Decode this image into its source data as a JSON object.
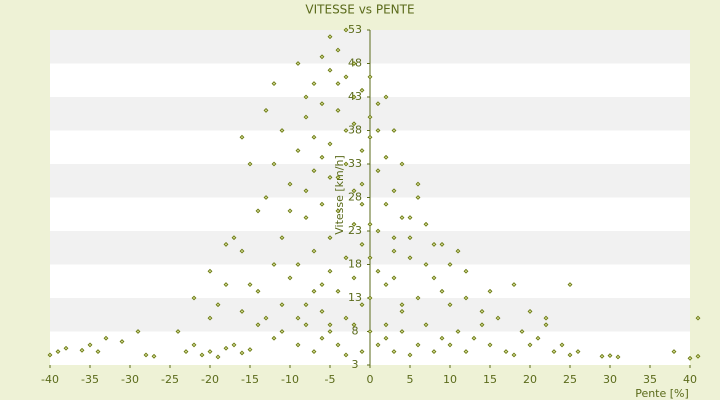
{
  "chart_data": {
    "type": "scatter",
    "title": "VITESSE vs PENTE",
    "x_label": "Pente [%]",
    "y_label": "Vitesse [km/h]",
    "color": "#6b7a12",
    "grid": true,
    "xlim": [
      -40,
      40
    ],
    "ylim": [
      3,
      53
    ],
    "xticks": [
      -40,
      -35,
      -30,
      -25,
      -20,
      -15,
      -10,
      -5,
      0,
      5,
      10,
      15,
      20,
      25,
      30,
      35,
      40
    ],
    "yticks": [
      3,
      8,
      13,
      18,
      23,
      28,
      33,
      38,
      43,
      48,
      53
    ],
    "x": [
      -39,
      -40,
      -38,
      -36,
      -35,
      -33,
      -34,
      -31,
      -29,
      -28,
      -27,
      -24,
      -23,
      -22,
      -21,
      -20,
      -19,
      -18,
      -17,
      -16,
      -15,
      -14,
      -13,
      -12,
      -11,
      -9,
      -8,
      -7,
      -6,
      -5,
      -4,
      -3,
      -2,
      -1,
      1,
      2,
      3,
      4,
      5,
      6,
      7,
      8,
      9,
      10,
      11,
      12,
      13,
      14,
      15,
      16,
      17,
      18,
      19,
      20,
      21,
      22,
      23,
      24,
      25,
      26,
      29,
      30,
      31,
      38,
      40,
      41,
      41,
      -22,
      -20,
      -18,
      -16,
      20,
      22,
      25,
      18,
      15,
      12,
      10,
      -8,
      -6,
      -4,
      -2,
      0,
      2,
      4,
      -9,
      -7,
      -5,
      -3,
      -1,
      1,
      3,
      5,
      7,
      9,
      -8,
      -6,
      -4,
      -2,
      0,
      2,
      4,
      6,
      -10,
      -7,
      -5,
      -3,
      -1,
      1,
      3,
      -9,
      -7,
      -5,
      -3,
      -1,
      0,
      2,
      -8,
      -6,
      -4,
      -2,
      0,
      1,
      -7,
      -5,
      -3,
      -1,
      0,
      -6,
      -4,
      -2,
      -5,
      -8,
      -12,
      -13,
      -11,
      -16,
      -15,
      -13,
      -16,
      -14,
      -11,
      -10,
      -12,
      -9,
      -6,
      -3,
      2,
      4,
      6,
      8,
      10,
      11,
      7,
      6,
      8,
      4,
      3,
      2,
      -3,
      -9,
      -4,
      -2,
      0,
      1,
      3,
      5,
      -7,
      -11,
      -14,
      -5,
      -1,
      1,
      -6,
      -8,
      -10,
      -12,
      -4,
      -2,
      3,
      5,
      -1,
      0,
      -5,
      9,
      12,
      14,
      -15,
      -18,
      -17,
      -19,
      -20
    ],
    "values": [
      5,
      4.5,
      5.5,
      5.2,
      6,
      7,
      5,
      6.5,
      8,
      4.5,
      4.3,
      8,
      5,
      6,
      4.5,
      5,
      4.2,
      5.5,
      6,
      4.8,
      5.3,
      9,
      10,
      7,
      8,
      6,
      9,
      5,
      7,
      8,
      6,
      4.5,
      9,
      5,
      6,
      7,
      5,
      8,
      4.5,
      6,
      9,
      5,
      7,
      6,
      8,
      5,
      7,
      9,
      6,
      10,
      5,
      4.5,
      8,
      6,
      7,
      9,
      5,
      6,
      4.5,
      5,
      4.3,
      4.4,
      4.2,
      5,
      4,
      4.3,
      10,
      13,
      10,
      15,
      11,
      11,
      10,
      15,
      15,
      14,
      13,
      12,
      12,
      15,
      14,
      16,
      13,
      15,
      12,
      18,
      20,
      22,
      19,
      21,
      23,
      20,
      22,
      18,
      21,
      25,
      27,
      26,
      29,
      24,
      27,
      25,
      28,
      30,
      32,
      31,
      33,
      30,
      32,
      29,
      35,
      37,
      36,
      38,
      35,
      37,
      34,
      40,
      42,
      41,
      43,
      40,
      42,
      45,
      47,
      46,
      44,
      46,
      49,
      50,
      48,
      52,
      43,
      45,
      41,
      38,
      37,
      33,
      28,
      20,
      26,
      22,
      16,
      18,
      10,
      11,
      10,
      9,
      11,
      13,
      16,
      18,
      20,
      24,
      30,
      21,
      33,
      38,
      43,
      53,
      48,
      31,
      24,
      19,
      17,
      16,
      19,
      14,
      12,
      14,
      17,
      27,
      38,
      34,
      29,
      26,
      33,
      45,
      39,
      22,
      25,
      12,
      8,
      9,
      14,
      17,
      11,
      15,
      21,
      22,
      12,
      17
    ]
  }
}
